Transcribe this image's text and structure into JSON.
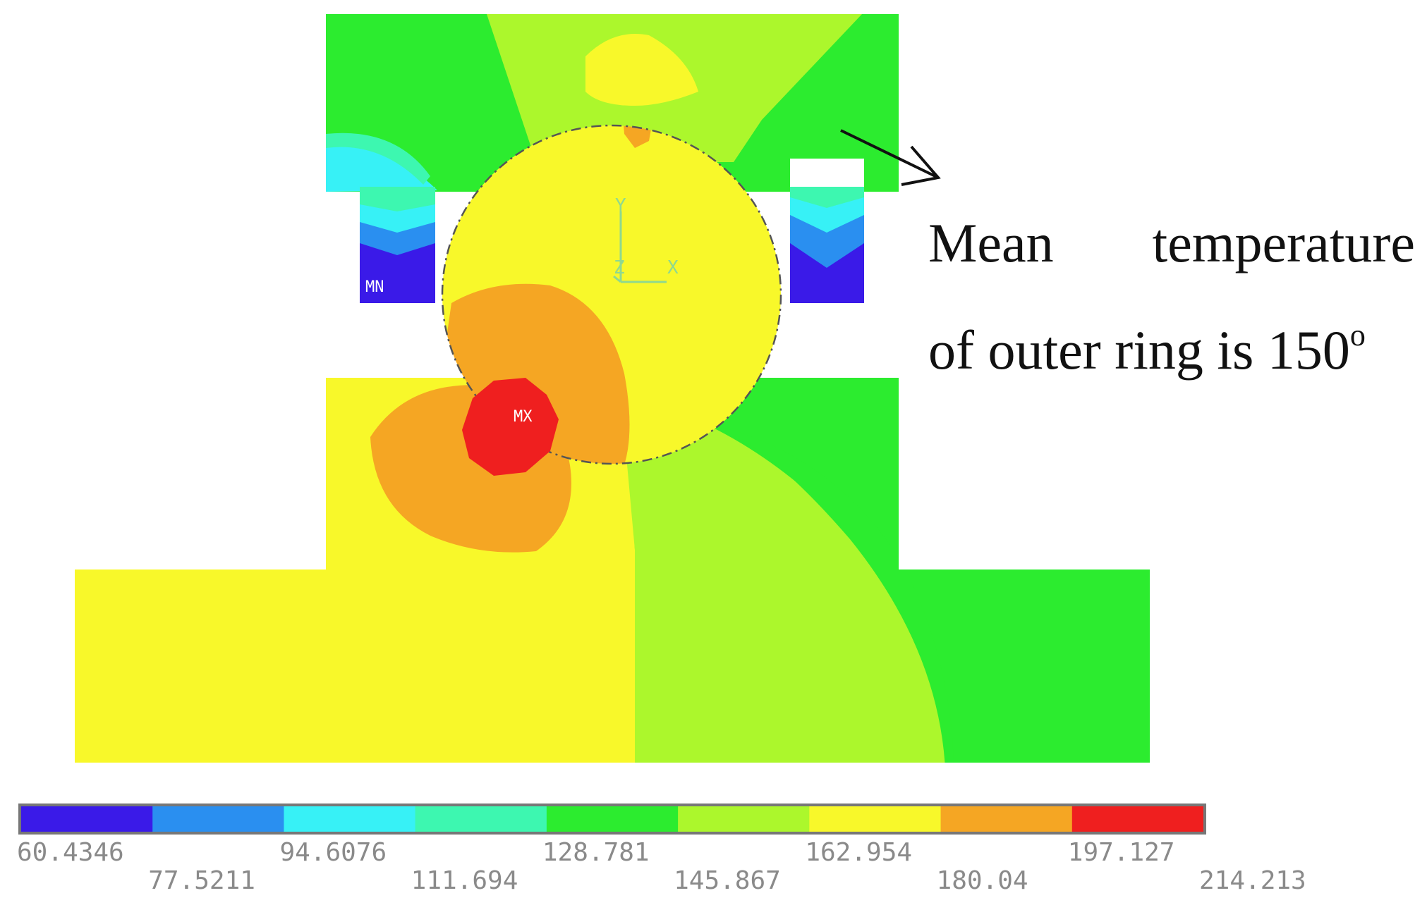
{
  "annotation": {
    "word_mean": "Mean",
    "word_temperature": "temperature",
    "line2_prefix": "of outer ring is 150",
    "line2_degree": "o"
  },
  "plot_labels": {
    "min_marker": "MN",
    "max_marker": "MX",
    "axis_y": "Y",
    "axis_z": "Z",
    "axis_x": "X"
  },
  "legend": {
    "top_row": [
      "60.4346",
      "94.6076",
      "128.781",
      "162.954",
      "197.127"
    ],
    "bottom_row": [
      "77.5211",
      "111.694",
      "145.867",
      "180.04",
      "214.213"
    ],
    "colors": [
      "#3a1ae8",
      "#2a8ff0",
      "#37f1f6",
      "#3df7b0",
      "#2cec2f",
      "#acf72c",
      "#f8f82a",
      "#f5a623",
      "#ef1f1f"
    ]
  },
  "colors": {
    "dark_blue": "#3a1ae8",
    "blue": "#2a8ff0",
    "cyan": "#37f1f6",
    "aqua_green": "#3df7b0",
    "green": "#2cec2f",
    "yellow_green": "#acf72c",
    "yellow": "#f8f82a",
    "orange": "#f5a623",
    "red": "#ef1f1f"
  }
}
